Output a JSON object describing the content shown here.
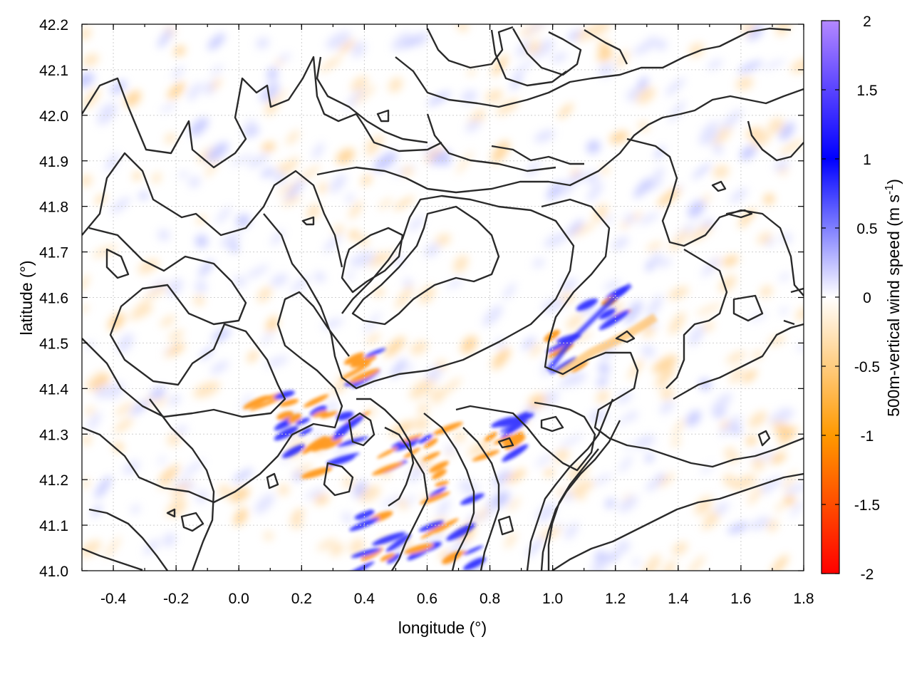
{
  "chart_data": {
    "type": "heatmap",
    "title": "",
    "xlabel": "longitude (°)",
    "ylabel": "latitude (°)",
    "xlim": [
      -0.5,
      1.8
    ],
    "ylim": [
      41.0,
      42.2
    ],
    "xticks": [
      "-0.4",
      "-0.2",
      "0.0",
      "0.2",
      "0.4",
      "0.6",
      "0.8",
      "1.0",
      "1.2",
      "1.4",
      "1.6",
      "1.8"
    ],
    "yticks": [
      "41.0",
      "41.1",
      "41.2",
      "41.3",
      "41.4",
      "41.5",
      "41.6",
      "41.7",
      "41.8",
      "41.9",
      "42.0",
      "42.1",
      "42.2"
    ],
    "grid": true,
    "colorbar": {
      "label_main": "500m-vertical wind speed (m s",
      "label_sup": "-1",
      "label_end": ")",
      "range": [
        -2,
        2
      ],
      "ticks": [
        "2",
        "1.5",
        "1",
        "0.5",
        "0",
        "-0.5",
        "-1",
        "-1.5",
        "-2"
      ],
      "colors": [
        "#ff0000",
        "#ff9900",
        "#ffffff",
        "#0000ff",
        "#b388ff"
      ]
    },
    "field_description_hidden": null,
    "overlay": "topography contour lines (black)"
  }
}
